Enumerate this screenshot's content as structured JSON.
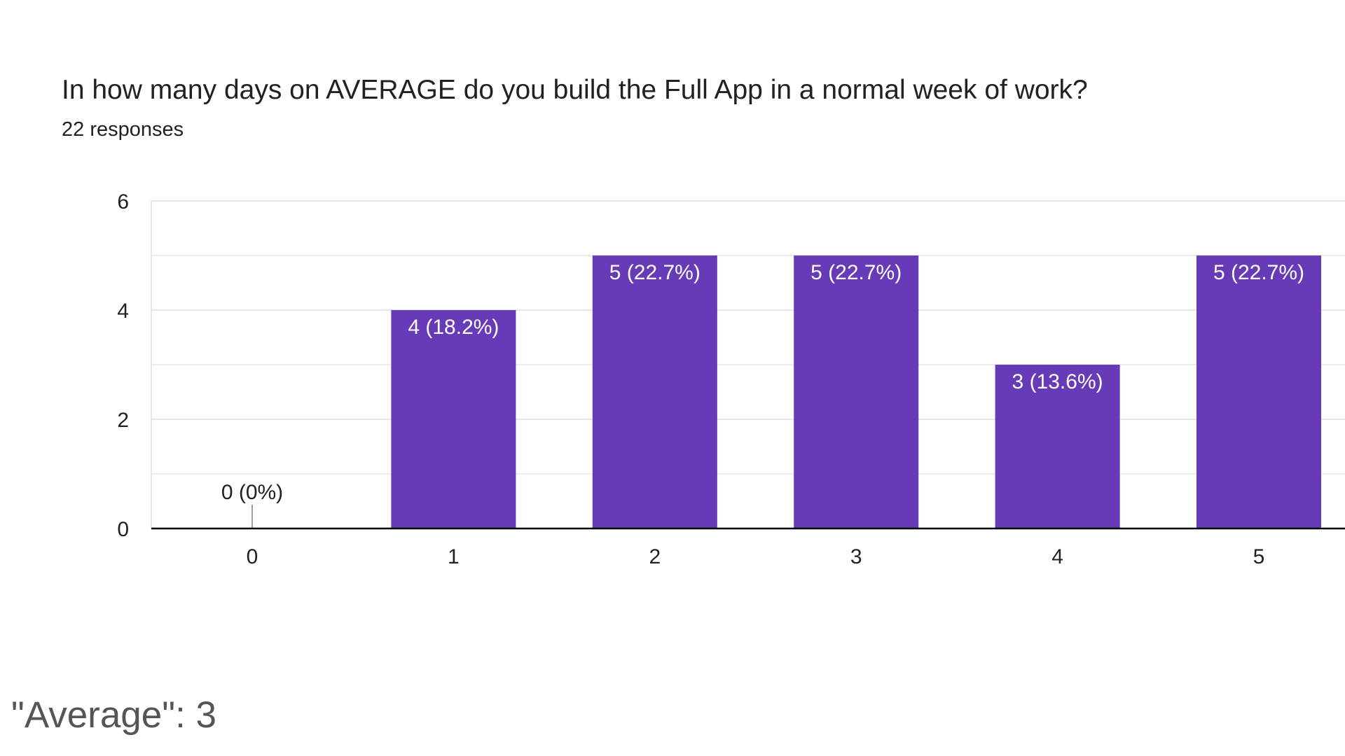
{
  "question": {
    "title": "In how many days on AVERAGE do you build the Full App in a normal week of work?",
    "responses": "22 responses"
  },
  "summary": {
    "average_text": "\"Average\": 3"
  },
  "colors": {
    "bar": "#673ab7",
    "grid": "#e6e6e6",
    "axis": "#000000",
    "text": "#202124",
    "bar_label": "#ffffff"
  },
  "chart_data": {
    "type": "bar",
    "categories": [
      "0",
      "1",
      "2",
      "3",
      "4",
      "5"
    ],
    "values": [
      0,
      4,
      5,
      5,
      3,
      5
    ],
    "data_labels": [
      "0 (0%)",
      "4 (18.2%)",
      "5 (22.7%)",
      "5 (22.7%)",
      "3 (13.6%)",
      "5 (22.7%)"
    ],
    "y_ticks": [
      "0",
      "2",
      "4",
      "6"
    ],
    "ylim": [
      0,
      6
    ],
    "grid": true,
    "title": "In how many days on AVERAGE do you build the Full App in a normal week of work?",
    "xlabel": "",
    "ylabel": ""
  }
}
